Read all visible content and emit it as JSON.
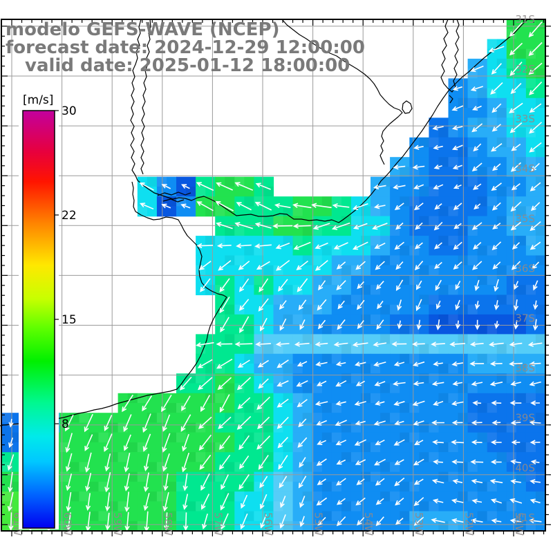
{
  "title": {
    "line1": "modelo GEFS-WAVE (NCEP)",
    "line2": "forecast date: 2024-12-29 12:00:00",
    "line3": "valid date: 2025-01-12 18:00:00",
    "color": "#7a7a7a"
  },
  "colorbar": {
    "unit_label": "[m/s]",
    "min": 0,
    "max": 30,
    "tick_labels": [
      "30",
      "22",
      "15",
      "8"
    ],
    "tick_values": [
      30,
      22.5,
      15,
      7.5
    ],
    "gradient_top_to_bottom": [
      [
        0.0,
        "#c2009e"
      ],
      [
        0.1,
        "#e8003c"
      ],
      [
        0.17,
        "#ff1400"
      ],
      [
        0.27,
        "#ff8400"
      ],
      [
        0.37,
        "#ffe800"
      ],
      [
        0.45,
        "#c8ff00"
      ],
      [
        0.52,
        "#60ff00"
      ],
      [
        0.6,
        "#00f000"
      ],
      [
        0.7,
        "#00f890"
      ],
      [
        0.78,
        "#00eaea"
      ],
      [
        0.84,
        "#00c8ff"
      ],
      [
        0.92,
        "#0064ff"
      ],
      [
        1.0,
        "#0000f0"
      ]
    ]
  },
  "axes": {
    "lat_labels": [
      "31S",
      "32S",
      "33S",
      "34S",
      "35S",
      "36S",
      "37S",
      "38S",
      "39S",
      "40S",
      "41S"
    ],
    "lon_labels": [
      "61W",
      "60W",
      "59W",
      "58W",
      "57W",
      "56W",
      "55W",
      "54W",
      "53W",
      "52W",
      "51W"
    ],
    "label_color": "#8f8a8a",
    "grid_color": "#9a9a9a"
  },
  "map": {
    "background": "#ffffff",
    "border_color": "#000000",
    "coast_color": "#000000",
    "arrow_color": "#ffffff",
    "palette": {
      "g": "#22e24f",
      "G": "#44ea3c",
      "a": "#00e890",
      "c": "#0edff0",
      "C": "#55cdf8",
      "b": "#28adf8",
      "B": "#0f8df3",
      "d": "#0b74ec",
      "D": "#0857e0"
    },
    "arrow_len": {
      "g": 26,
      "G": 27,
      "a": 24,
      "c": 21,
      "C": 19,
      "b": 17,
      "B": 15,
      "d": 13,
      "D": 12
    },
    "cell_grid": [
      "..........................gg",
      ".........................cgg",
      "........................bcag",
      ".......................Bbcca",
      ".......................BBbcc",
      "......................dBbbcc",
      ".....................BddBbbc",
      "....................bBddBBbb",
      ".......cBDagga.....bBBdddBBb",
      ".......cDBggaaaggacbBddddBbb",
      "...........aaaggaaccBdddBBbb",
      "..........cccccacccbBBddBBBb",
      "..........cccccccbbBBBBBBBBB",
      "..........cacaccbbBBBBBBBBdd",
      "...........accbbbBBBBBdddddd",
      "...........aacbbBBBBddDDDDDd",
      "..........aaaCCCCCCCCCCCCCCC",
      "..........aacbbBBBBBBBBBbbbb",
      ".........aagacbBBBBBBBBBBBBB",
      "......ggggggaacbBBBBBBBBdddd",
      "dbbggggggggaaacbBBBBBBBBdddd",
      "dbggggggggggaacbBBBBBBBBBddd",
      "aggggggggggaaacbBBBBBBBBBBdd",
      "gagggggggaaaacCbBBBBBBBBBBBd",
      "GggggggggaaaccCbBBBBBBBBBBBB",
      "GGgggggggaaaccCbBBBBBbbbBBBB"
    ],
    "arrow_runs": [
      [
        [
          26,
          27,
          135
        ]
      ],
      [
        [
          25,
          25,
          160
        ],
        [
          26,
          27,
          135
        ]
      ],
      [
        [
          24,
          24,
          160
        ],
        [
          25,
          27,
          135
        ]
      ],
      [
        [
          23,
          24,
          160
        ],
        [
          25,
          27,
          135
        ]
      ],
      [
        [
          23,
          24,
          160
        ],
        [
          25,
          27,
          140
        ]
      ],
      [
        [
          22,
          23,
          165
        ],
        [
          24,
          27,
          140
        ]
      ],
      [
        [
          21,
          22,
          170
        ],
        [
          23,
          23,
          160
        ],
        [
          24,
          27,
          140
        ]
      ],
      [
        [
          20,
          21,
          170
        ],
        [
          22,
          23,
          160
        ],
        [
          24,
          27,
          140
        ]
      ],
      [
        [
          7,
          13,
          205
        ],
        [
          19,
          20,
          170
        ],
        [
          21,
          23,
          160
        ],
        [
          24,
          27,
          140
        ]
      ],
      [
        [
          7,
          13,
          205
        ],
        [
          14,
          17,
          190
        ],
        [
          18,
          19,
          165
        ],
        [
          20,
          27,
          140
        ]
      ],
      [
        [
          11,
          13,
          200
        ],
        [
          14,
          15,
          175
        ],
        [
          16,
          19,
          160
        ],
        [
          20,
          27,
          140
        ]
      ],
      [
        [
          10,
          13,
          175
        ],
        [
          14,
          17,
          160
        ],
        [
          18,
          19,
          150
        ],
        [
          20,
          27,
          140
        ]
      ],
      [
        [
          10,
          13,
          145
        ],
        [
          14,
          19,
          140
        ],
        [
          20,
          27,
          135
        ]
      ],
      [
        [
          10,
          13,
          125
        ],
        [
          14,
          19,
          130
        ],
        [
          20,
          23,
          120
        ],
        [
          24,
          27,
          110
        ]
      ],
      [
        [
          11,
          15,
          125
        ],
        [
          16,
          19,
          130
        ],
        [
          20,
          23,
          110
        ],
        [
          24,
          27,
          100
        ]
      ],
      [
        [
          11,
          15,
          120
        ],
        [
          16,
          19,
          125
        ],
        [
          20,
          23,
          100
        ],
        [
          24,
          27,
          95
        ]
      ],
      [
        [
          10,
          27,
          175
        ]
      ],
      [
        [
          10,
          15,
          150
        ],
        [
          16,
          21,
          165
        ],
        [
          22,
          27,
          175
        ]
      ],
      [
        [
          9,
          13,
          135
        ],
        [
          14,
          19,
          155
        ],
        [
          20,
          27,
          170
        ]
      ],
      [
        [
          6,
          11,
          120
        ],
        [
          12,
          15,
          140
        ],
        [
          16,
          23,
          165
        ],
        [
          24,
          27,
          180
        ]
      ],
      [
        [
          0,
          2,
          95
        ],
        [
          3,
          9,
          115
        ],
        [
          10,
          15,
          135
        ],
        [
          16,
          21,
          160
        ],
        [
          22,
          27,
          180
        ]
      ],
      [
        [
          0,
          9,
          110
        ],
        [
          10,
          15,
          130
        ],
        [
          16,
          21,
          155
        ],
        [
          22,
          27,
          180
        ]
      ],
      [
        [
          0,
          9,
          105
        ],
        [
          10,
          15,
          125
        ],
        [
          16,
          21,
          150
        ],
        [
          22,
          27,
          185
        ]
      ],
      [
        [
          0,
          9,
          100
        ],
        [
          10,
          15,
          120
        ],
        [
          16,
          21,
          145
        ],
        [
          22,
          27,
          190
        ]
      ],
      [
        [
          0,
          9,
          100
        ],
        [
          10,
          15,
          115
        ],
        [
          16,
          21,
          140
        ],
        [
          22,
          27,
          195
        ]
      ],
      [
        [
          0,
          9,
          95
        ],
        [
          10,
          15,
          110
        ],
        [
          16,
          21,
          135
        ],
        [
          22,
          27,
          190
        ]
      ]
    ],
    "coast_paths": [
      "M763,28 L755,36 744,48 733,57 722,66 710,76 700,84 690,93 678,104 668,112 658,122 649,131 641,142 633,154 626,166 618,178 610,190 601,202 592,214 583,226 574,236 566,246 559,254 551,262 545,271 538,280 530,289 522,297 513,305 504,312 496,318 490,322 480,318 470,320 458,318 447,319 436,317 425,317 415,310 405,309 395,312 385,313 374,313 363,310 352,311 342,312 333,306 324,300 314,293 304,288 295,284 286,286 277,290 268,287 259,286 250,288 241,285 232,282 223,279 214,273 206,267 199,261",
      "M199,261 L196,254 191,246 195,237 190,228 194,219 189,210 194,201 190,192 194,183 189,174 193,165 190,156 194,147 190,138 194,129 191,120 195,111 192,102 196,93 199,84 197,75 202,66 199,57 203,48 201,39 204,28",
      "M207,252 L204,244 208,236 204,228 208,219 204,210 208,201 205,192 209,183 205,174 209,165 206,156 210,147 207,138 211,129 208,120 212,111 210,102 214,93 212,84 216,75 213,66 217,57 215,48 218,39 217,28",
      "M191,263 L193,272 192,281 194,290 193,299 196,306 204,311 213,315 222,318 231,317 240,314 249,315 258,318 262,325 266,333 271,341 278,348 284,354 289,362 292,371 290,381 288,391 289,400 292,409 298,416 306,421 315,425 323,427 328,430 323,438 316,449 309,461 304,472 301,482 299,492 295,503 290,515 284,526 277,536 269,546 262,556 256,563 246,566 235,568 224,570 213,572 202,575 191,578 180,581 169,584 158,588 147,591 136,593 125,596 114,598 103,601 92,604 81,606 70,608 59,610 48,611 37,612 26,613 15,614 4,615 0,616",
      "M408,28 L415,36 424,43 433,50 443,56 453,63 464,70 475,76 487,81 497,88 507,94 517,100 527,107 535,114 541,121 546,129 550,137 556,144 563,151 570,156 578,159 582,163 576,169 570,174 564,179 559,184 554,190 552,197 555,204 551,211 554,218 550,225 553,232 556,238",
      "M228,283 L238,279 248,282 258,278 268,282 276,279",
      "M236,291 L247,288 257,292 266,289",
      "M648,28 L644,38 648,47 642,56 646,66 640,75 644,85 639,94 643,103 638,112 642,121 648,128 654,133 659,126 656,117 661,108 657,99 662,90 658,81 663,72 659,63 664,54 660,45 664,36 661,28",
      "M583,150 L588,146 594,150 596,157 592,163 586,164 582,158 Z",
      "M650,138 L655,143 651,149"
    ]
  }
}
